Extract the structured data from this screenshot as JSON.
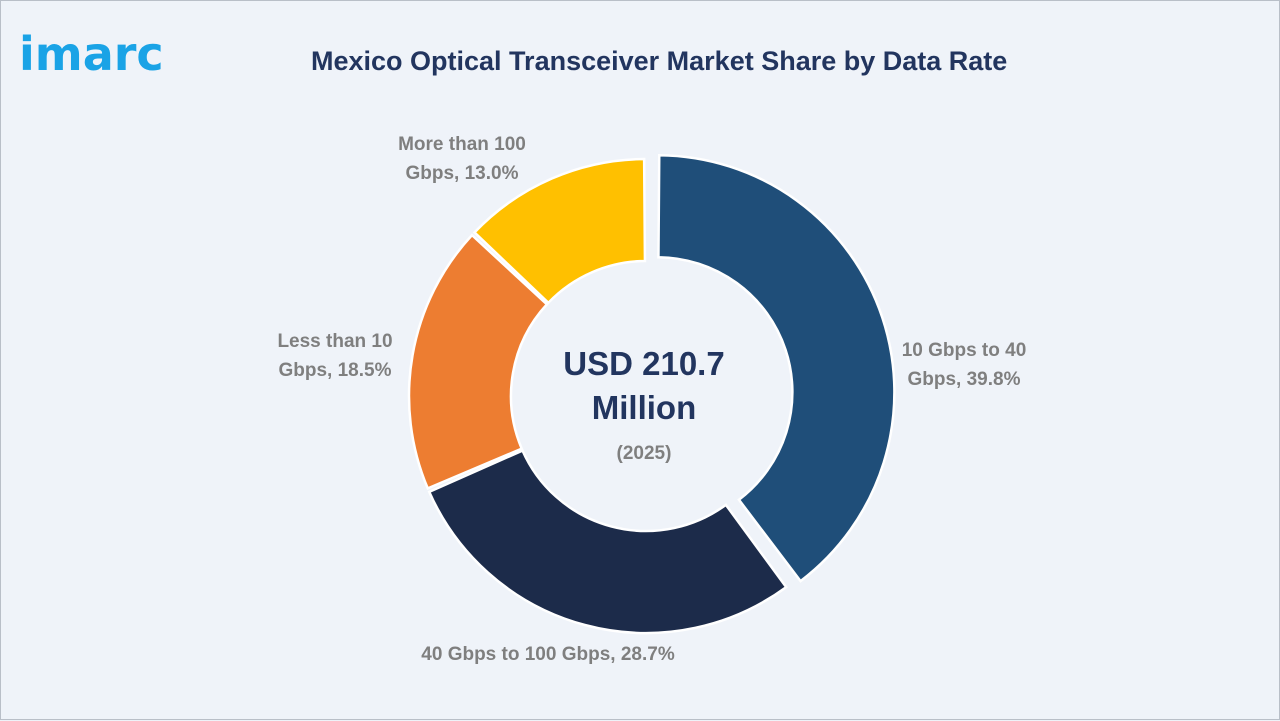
{
  "logo": {
    "text": "imarc"
  },
  "chart_data": {
    "type": "pie",
    "title": "Mexico Optical Transceiver Market Share by Data Rate",
    "center": {
      "line1": "USD 210.7",
      "line2": "Million",
      "line3": "(2025)"
    },
    "slices": [
      {
        "name": "10 Gbps to 40 Gbps",
        "value": 39.8,
        "label_lines": [
          "10 Gbps to 40",
          "Gbps, 39.8%"
        ],
        "color": "#1f4e79",
        "exploded": true
      },
      {
        "name": "40 Gbps to 100 Gbps",
        "value": 28.7,
        "label_lines": [
          "40 Gbps to 100 Gbps, 28.7%"
        ],
        "color": "#1c2b4a",
        "exploded": false
      },
      {
        "name": "Less than 10 Gbps",
        "value": 18.5,
        "label_lines": [
          "Less than 10",
          "Gbps, 18.5%"
        ],
        "color": "#ed7d31",
        "exploded": false
      },
      {
        "name": "More than 100 Gbps",
        "value": 13.0,
        "label_lines": [
          "More than 100",
          "Gbps, 13.0%"
        ],
        "color": "#ffc000",
        "exploded": false
      }
    ],
    "donut": true,
    "legend": "none"
  }
}
